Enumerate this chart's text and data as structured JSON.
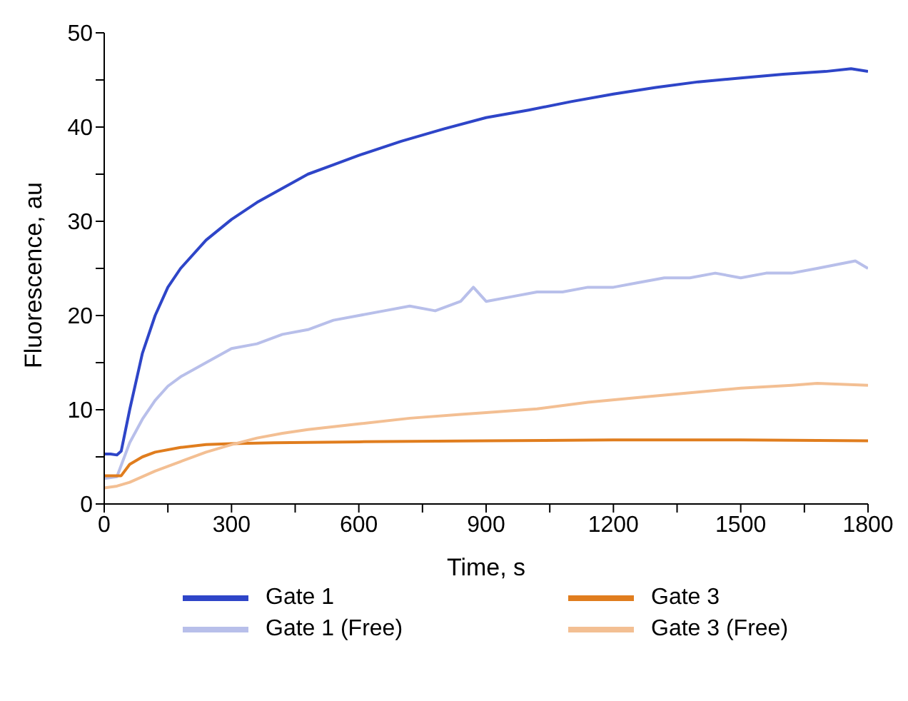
{
  "chart_data": {
    "type": "line",
    "xlabel": "Time, s",
    "ylabel": "Fluorescence, au",
    "xlim": [
      0,
      1800
    ],
    "ylim": [
      0,
      50
    ],
    "xticks": [
      0,
      {
        "value": 150,
        "label": null
      },
      300,
      {
        "value": 450,
        "label": null
      },
      600,
      {
        "value": 750,
        "label": null
      },
      900,
      {
        "value": 1050,
        "label": null
      },
      1200,
      {
        "value": 1350,
        "label": null
      },
      1500,
      {
        "value": 1650,
        "label": null
      },
      1800
    ],
    "yticks": [
      0,
      {
        "value": 5,
        "label": null
      },
      10,
      {
        "value": 15,
        "label": null
      },
      20,
      {
        "value": 25,
        "label": null
      },
      30,
      {
        "value": 35,
        "label": null
      },
      40,
      {
        "value": 45,
        "label": null
      },
      50
    ],
    "grid": false,
    "legend": "bottom",
    "marker": "none",
    "line_style": "solid",
    "series": [
      {
        "name": "Gate 1",
        "color": "#2e45c8",
        "x": [
          0,
          15,
          30,
          40,
          60,
          90,
          120,
          150,
          180,
          240,
          300,
          360,
          420,
          480,
          540,
          600,
          700,
          800,
          900,
          1000,
          1100,
          1200,
          1300,
          1400,
          1500,
          1600,
          1700,
          1760,
          1800
        ],
        "values": [
          5.3,
          5.3,
          5.2,
          5.6,
          10,
          16,
          20,
          23,
          25,
          28,
          30.2,
          32,
          33.5,
          35,
          36,
          37,
          38.5,
          39.8,
          41,
          41.8,
          42.7,
          43.5,
          44.2,
          44.8,
          45.2,
          45.6,
          45.9,
          46.2,
          45.9
        ]
      },
      {
        "name": "Gate 1 (Free)",
        "color": "#b8bfea",
        "x": [
          0,
          30,
          60,
          90,
          120,
          150,
          180,
          240,
          300,
          360,
          420,
          480,
          540,
          600,
          660,
          720,
          780,
          840,
          870,
          900,
          960,
          1020,
          1080,
          1140,
          1200,
          1260,
          1320,
          1380,
          1440,
          1500,
          1560,
          1620,
          1680,
          1770,
          1800
        ],
        "values": [
          2.7,
          2.9,
          6.5,
          9,
          11,
          12.5,
          13.5,
          15,
          16.5,
          17,
          18,
          18.5,
          19.5,
          20,
          20.5,
          21,
          20.5,
          21.5,
          23,
          21.5,
          22,
          22.5,
          22.5,
          23,
          23,
          23.5,
          24,
          24,
          24.5,
          24,
          24.5,
          24.5,
          25,
          25.8,
          25
        ]
      },
      {
        "name": "Gate 3",
        "color": "#e07d1e",
        "x": [
          0,
          40,
          60,
          90,
          120,
          180,
          240,
          300,
          400,
          600,
          900,
          1200,
          1500,
          1800
        ],
        "values": [
          3,
          3,
          4.2,
          5,
          5.5,
          6,
          6.3,
          6.4,
          6.5,
          6.6,
          6.7,
          6.8,
          6.8,
          6.7
        ]
      },
      {
        "name": "Gate 3 (Free)",
        "color": "#f3bf93",
        "x": [
          0,
          30,
          60,
          120,
          180,
          240,
          300,
          360,
          420,
          480,
          600,
          720,
          840,
          900,
          1020,
          1140,
          1260,
          1380,
          1500,
          1620,
          1680,
          1800
        ],
        "values": [
          1.7,
          1.9,
          2.3,
          3.5,
          4.5,
          5.5,
          6.3,
          7,
          7.5,
          7.9,
          8.5,
          9.1,
          9.5,
          9.7,
          10.1,
          10.8,
          11.3,
          11.8,
          12.3,
          12.6,
          12.8,
          12.6
        ]
      }
    ]
  }
}
